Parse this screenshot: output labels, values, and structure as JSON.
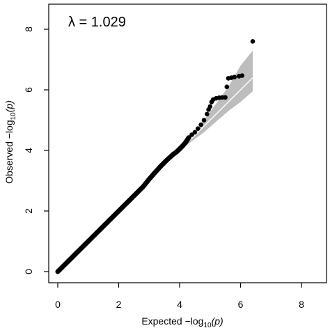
{
  "chart_data": {
    "type": "scatter",
    "xlabel": "Expected  −log",
    "xlabel_sub": "10",
    "xlabel_suffix": "(p)",
    "ylabel": "Observed  −log",
    "ylabel_sub": "10",
    "ylabel_suffix": "(p)",
    "annotation": "λ = 1.029",
    "xlim": [
      0,
      8
    ],
    "ylim": [
      0,
      8
    ],
    "x_ticks": [
      0,
      2,
      4,
      6,
      8
    ],
    "y_ticks": [
      0,
      2,
      4,
      6,
      8
    ],
    "x_tick_labels": [
      "0",
      "2",
      "4",
      "6",
      "8"
    ],
    "y_tick_labels": [
      "0",
      "2",
      "4",
      "6",
      "8"
    ],
    "grid": false,
    "confidence_band": {
      "x": [
        4.0,
        4.4,
        4.8,
        5.2,
        5.6,
        6.0,
        6.4
      ],
      "lower": [
        4.0,
        4.3,
        4.6,
        4.95,
        5.3,
        5.6,
        5.95
      ],
      "upper": [
        4.0,
        4.5,
        5.0,
        5.55,
        6.1,
        6.8,
        7.3
      ]
    },
    "expected_line": [
      [
        0,
        0
      ],
      [
        6.4,
        6.4
      ]
    ],
    "points": [
      [
        0.0,
        0.0
      ],
      [
        0.2,
        0.2
      ],
      [
        0.4,
        0.4
      ],
      [
        0.6,
        0.6
      ],
      [
        0.8,
        0.8
      ],
      [
        1.0,
        1.0
      ],
      [
        1.2,
        1.2
      ],
      [
        1.4,
        1.4
      ],
      [
        1.6,
        1.6
      ],
      [
        1.8,
        1.8
      ],
      [
        2.0,
        2.0
      ],
      [
        2.2,
        2.2
      ],
      [
        2.4,
        2.4
      ],
      [
        2.6,
        2.6
      ],
      [
        2.8,
        2.8
      ],
      [
        3.0,
        3.05
      ],
      [
        3.2,
        3.28
      ],
      [
        3.4,
        3.5
      ],
      [
        3.6,
        3.7
      ],
      [
        3.8,
        3.88
      ],
      [
        3.9,
        3.95
      ],
      [
        4.0,
        4.05
      ],
      [
        4.1,
        4.15
      ],
      [
        4.2,
        4.27
      ],
      [
        4.3,
        4.42
      ],
      [
        4.4,
        4.52
      ],
      [
        4.5,
        4.6
      ],
      [
        4.6,
        4.72
      ],
      [
        4.7,
        4.85
      ],
      [
        4.8,
        5.0
      ],
      [
        4.9,
        5.2
      ],
      [
        4.95,
        5.35
      ],
      [
        5.0,
        5.45
      ],
      [
        5.05,
        5.6
      ],
      [
        5.1,
        5.68
      ],
      [
        5.2,
        5.72
      ],
      [
        5.3,
        5.74
      ],
      [
        5.4,
        5.75
      ],
      [
        5.5,
        5.75
      ],
      [
        5.55,
        6.1
      ],
      [
        5.6,
        6.38
      ],
      [
        5.7,
        6.4
      ],
      [
        5.8,
        6.42
      ],
      [
        5.95,
        6.45
      ],
      [
        6.05,
        6.47
      ],
      [
        6.4,
        7.6
      ]
    ]
  }
}
